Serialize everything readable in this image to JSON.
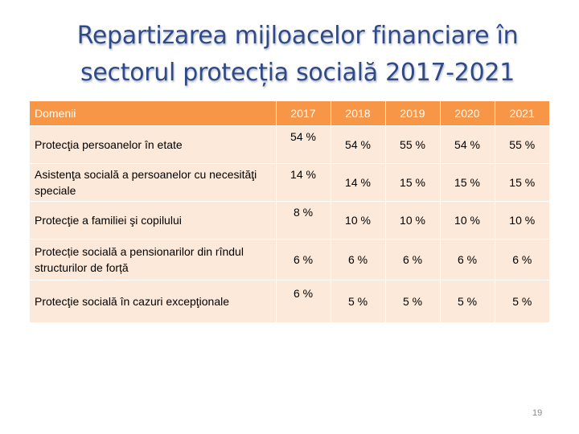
{
  "title": {
    "line1": "Repartizarea mijloacelor financiare în",
    "line2": "sectorul protecția socială 2017-2021"
  },
  "table": {
    "headers": [
      "Domenii",
      "2017",
      "2018",
      "2019",
      "2020",
      "2021"
    ],
    "rows": [
      {
        "domain": "Protecţia persoanelor în etate",
        "values": [
          "54 %",
          "54 %",
          "55 %",
          "54 %",
          "55 %"
        ]
      },
      {
        "domain": "Asistenţa socială a persoanelor cu necesităţi speciale",
        "values": [
          "14 %",
          "14 %",
          "15 %",
          "15 %",
          "15 %"
        ]
      },
      {
        "domain": "Protecţie a familiei şi copilului",
        "values": [
          "8 %",
          "10 %",
          "10 %",
          "10 %",
          "10 %"
        ]
      },
      {
        "domain": "Protecție socială a pensionarilor din rîndul structurilor de forță",
        "values": [
          "6 %",
          "6 %",
          "6 %",
          "6 %",
          "6 %"
        ]
      },
      {
        "domain": "Protecţie socială în cazuri excepţionale",
        "values": [
          "6 %",
          "5 %",
          "5 %",
          "5 %",
          "5 %"
        ]
      }
    ]
  },
  "page_number": "19",
  "colors": {
    "header_bg": "#f79646",
    "row_bg": "#fde9d9",
    "title": "#2f4a86"
  }
}
